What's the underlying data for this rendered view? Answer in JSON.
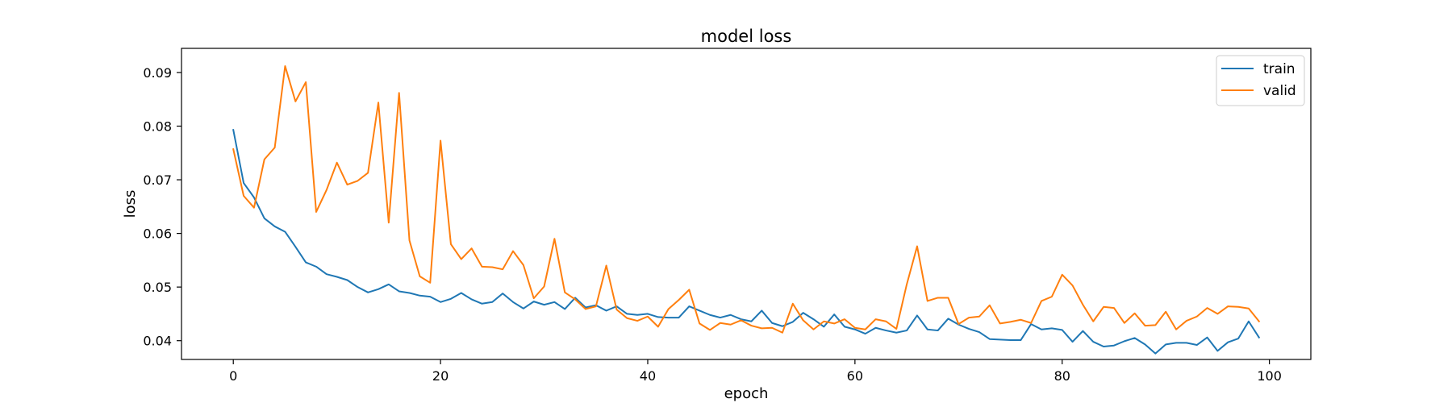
{
  "chart_data": {
    "type": "line",
    "title": "model loss",
    "xlabel": "epoch",
    "ylabel": "loss",
    "xlim": [
      -5,
      104
    ],
    "ylim": [
      0.0365,
      0.0945
    ],
    "xticks": [
      0,
      20,
      40,
      60,
      80,
      100
    ],
    "yticks": [
      0.04,
      0.05,
      0.06,
      0.07,
      0.08,
      0.09
    ],
    "xtick_labels": [
      "0",
      "20",
      "40",
      "60",
      "80",
      "100"
    ],
    "ytick_labels": [
      "0.04",
      "0.05",
      "0.06",
      "0.07",
      "0.08",
      "0.09"
    ],
    "grid": false,
    "legend_position": "top-right",
    "series": [
      {
        "name": "train",
        "color": "#1f77b4",
        "values": [
          0.0793,
          0.0694,
          0.0667,
          0.0628,
          0.0613,
          0.0603,
          0.0575,
          0.0546,
          0.0538,
          0.0524,
          0.0519,
          0.0513,
          0.05,
          0.049,
          0.0496,
          0.0505,
          0.0492,
          0.0489,
          0.0484,
          0.0482,
          0.0472,
          0.0478,
          0.0489,
          0.0477,
          0.0469,
          0.0472,
          0.0488,
          0.0472,
          0.046,
          0.0473,
          0.0467,
          0.0472,
          0.0459,
          0.048,
          0.0462,
          0.0466,
          0.0456,
          0.0464,
          0.045,
          0.0448,
          0.045,
          0.0444,
          0.0443,
          0.0443,
          0.0464,
          0.0456,
          0.0448,
          0.0443,
          0.0448,
          0.044,
          0.0436,
          0.0456,
          0.0433,
          0.0427,
          0.0435,
          0.0452,
          0.044,
          0.0426,
          0.0449,
          0.0426,
          0.0421,
          0.0413,
          0.0424,
          0.0419,
          0.0415,
          0.0419,
          0.0447,
          0.0421,
          0.0419,
          0.0441,
          0.043,
          0.0422,
          0.0416,
          0.0403,
          0.0402,
          0.0401,
          0.0401,
          0.0431,
          0.0421,
          0.0423,
          0.042,
          0.0398,
          0.0418,
          0.0398,
          0.0389,
          0.0391,
          0.0399,
          0.0405,
          0.0393,
          0.0376,
          0.0393,
          0.0396,
          0.0396,
          0.0392,
          0.0406,
          0.0381,
          0.0397,
          0.0404,
          0.0436,
          0.0406
        ]
      },
      {
        "name": "valid",
        "color": "#ff7f0e",
        "values": [
          0.0757,
          0.067,
          0.0648,
          0.0738,
          0.076,
          0.0912,
          0.0846,
          0.0882,
          0.064,
          0.0681,
          0.0732,
          0.0691,
          0.0698,
          0.0713,
          0.0844,
          0.062,
          0.0862,
          0.0587,
          0.052,
          0.0508,
          0.0773,
          0.058,
          0.0552,
          0.0572,
          0.0538,
          0.0537,
          0.0533,
          0.0567,
          0.0541,
          0.0479,
          0.0501,
          0.059,
          0.049,
          0.0477,
          0.0459,
          0.0464,
          0.054,
          0.0458,
          0.0442,
          0.0437,
          0.0445,
          0.0426,
          0.0459,
          0.0476,
          0.0495,
          0.0432,
          0.042,
          0.0433,
          0.043,
          0.0438,
          0.0428,
          0.0423,
          0.0424,
          0.0415,
          0.0469,
          0.0438,
          0.0421,
          0.0436,
          0.0432,
          0.044,
          0.0424,
          0.0421,
          0.044,
          0.0436,
          0.0422,
          0.0505,
          0.0576,
          0.0474,
          0.048,
          0.048,
          0.0431,
          0.0443,
          0.0445,
          0.0466,
          0.0432,
          0.0435,
          0.0439,
          0.0433,
          0.0474,
          0.0482,
          0.0523,
          0.0503,
          0.0467,
          0.0436,
          0.0463,
          0.0461,
          0.0433,
          0.0451,
          0.0428,
          0.0429,
          0.0454,
          0.0421,
          0.0437,
          0.0445,
          0.0461,
          0.045,
          0.0464,
          0.0463,
          0.046,
          0.0436
        ]
      }
    ]
  }
}
